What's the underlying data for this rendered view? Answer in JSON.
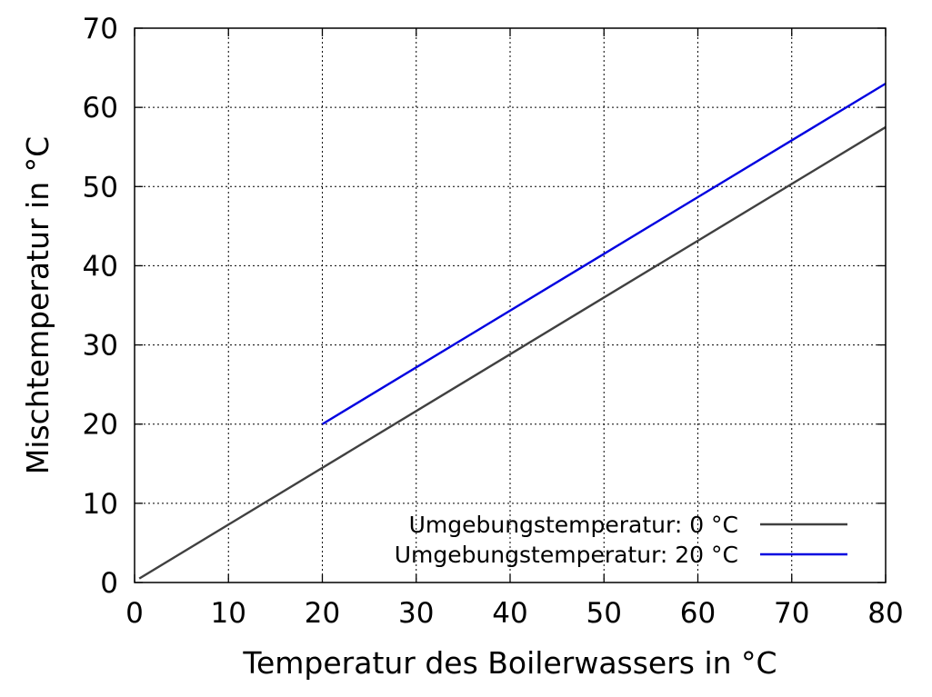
{
  "chart_data": {
    "type": "line",
    "xlabel": "Temperatur des Boilerwassers in °C",
    "ylabel": "Mischtemperatur in °C",
    "xlim": [
      0,
      80
    ],
    "ylim": [
      0,
      70
    ],
    "x_ticks": [
      0,
      10,
      20,
      30,
      40,
      50,
      60,
      70,
      80
    ],
    "y_ticks": [
      0,
      10,
      20,
      30,
      40,
      50,
      60,
      70
    ],
    "grid": true,
    "legend_position": "bottom-right",
    "series": [
      {
        "name": "Umgebungstemperatur: 0 °C",
        "color": "#404040",
        "x": [
          0.5,
          80
        ],
        "y": [
          0.5,
          57.5
        ]
      },
      {
        "name": "Umgebungstemperatur: 20 °C",
        "color": "#0000e0",
        "x": [
          20,
          80
        ],
        "y": [
          20,
          63
        ]
      }
    ]
  }
}
